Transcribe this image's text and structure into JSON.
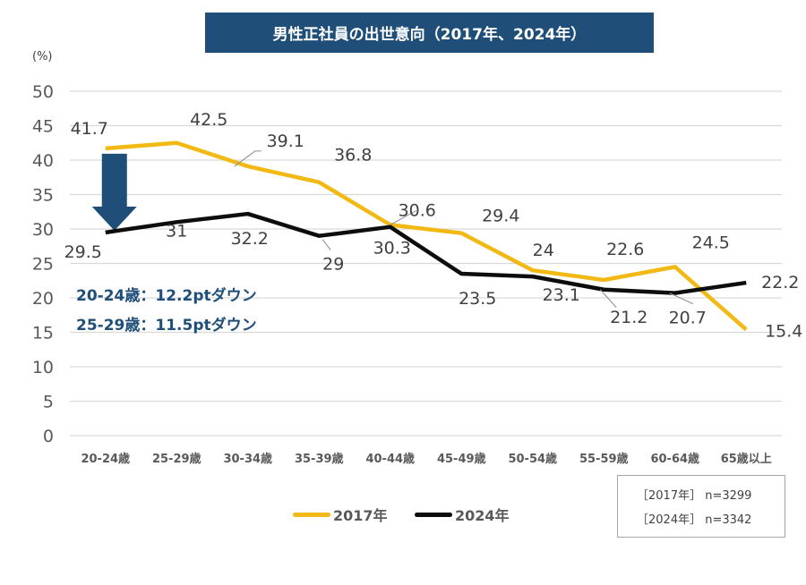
{
  "chart_data": {
    "type": "line",
    "title": "男性正社員の出世意向（2017年、2024年）",
    "ylabel": "(%)",
    "xlabel": "",
    "ylim": [
      0,
      50
    ],
    "yticks": [
      0,
      5,
      10,
      15,
      20,
      25,
      30,
      35,
      40,
      45,
      50
    ],
    "grid": true,
    "categories": [
      "20-24歳",
      "25-29歳",
      "30-34歳",
      "35-39歳",
      "40-44歳",
      "45-49歳",
      "50-54歳",
      "55-59歳",
      "60-64歳",
      "65歳以上"
    ],
    "series": [
      {
        "name": "2017年",
        "color": "#f2b914",
        "values": [
          41.7,
          42.5,
          39.1,
          36.8,
          30.6,
          29.4,
          24,
          22.6,
          24.5,
          15.4
        ],
        "labels": [
          "41.7",
          "42.5",
          "39.1",
          "36.8",
          "30.6",
          "29.4",
          "24",
          "22.6",
          "24.5",
          "15.4"
        ]
      },
      {
        "name": "2024年",
        "color": "#0d0d0d",
        "values": [
          29.5,
          31,
          32.2,
          29,
          30.3,
          23.5,
          23.1,
          21.2,
          20.7,
          22.2
        ],
        "labels": [
          "29.5",
          "31",
          "32.2",
          "29",
          "30.3",
          "23.5",
          "23.1",
          "21.2",
          "20.7",
          "22.2"
        ]
      }
    ],
    "legend_position": "bottom-center",
    "annotations": [
      "20-24歳：12.2ptダウン",
      "25-29歳：11.5ptダウン"
    ],
    "arrow": {
      "category": "20-24歳",
      "from": 41.7,
      "to": 29.5,
      "color": "#1f4e79"
    }
  },
  "page": {
    "title": "男性正社員の出世意向（2017年、2024年）",
    "unit": "(%)",
    "notes": [
      "20-24歳：12.2ptダウン",
      "25-29歳：11.5ptダウン"
    ],
    "legend": [
      "2017年",
      "2024年"
    ],
    "samples": [
      "［2017年］ n=3299",
      "［2024年］ n=3342"
    ]
  }
}
